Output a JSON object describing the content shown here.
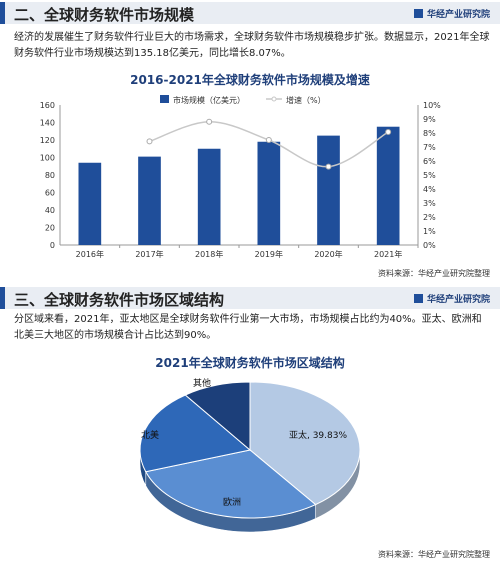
{
  "section2": {
    "title": "二、全球财务软件市场规模",
    "brand": "华经产业研究院",
    "paragraph": "经济的发展催生了财务软件行业巨大的市场需求，全球财务软件市场规模稳步扩张。数据显示，2021年全球财务软件行业市场规模达到135.18亿美元，同比增长8.07%。",
    "source": "资料来源：华经产业研究院整理"
  },
  "section3": {
    "title": "三、全球财务软件市场区域结构",
    "brand": "华经产业研究院",
    "paragraph": "分区域来看，2021年，亚太地区是全球财务软件行业第一大市场，市场规模占比约为40%。亚太、欧洲和北美三大地区的市场规模合计占比达到90%。",
    "source": "资料来源：华经产业研究院整理"
  },
  "colors": {
    "accent": "#1f4e9a",
    "bar": "#1f4e9a",
    "line": "#c8c8c8",
    "header_bg": "#e9edf3"
  },
  "chart_data": [
    {
      "type": "bar",
      "title": "2016-2021年全球财务软件市场规模及增速",
      "categories": [
        "2016年",
        "2017年",
        "2018年",
        "2019年",
        "2020年",
        "2021年"
      ],
      "series": [
        {
          "name": "市场规模（亿美元）",
          "type": "bar",
          "axis": "left",
          "values": [
            94,
            101,
            110,
            118,
            125,
            135.18
          ]
        },
        {
          "name": "增速（%）",
          "type": "line",
          "axis": "right",
          "values": [
            null,
            7.4,
            8.8,
            7.5,
            5.6,
            8.07
          ]
        }
      ],
      "ylim": [
        0,
        160
      ],
      "yticks": [
        "0",
        "20",
        "40",
        "60",
        "80",
        "100",
        "120",
        "140",
        "160"
      ],
      "y2lim": [
        0,
        10
      ],
      "y2ticks": [
        "0%",
        "1%",
        "2%",
        "3%",
        "4%",
        "5%",
        "6%",
        "7%",
        "8%",
        "9%",
        "10%"
      ],
      "legend": "top-center",
      "grid": false
    },
    {
      "type": "pie",
      "title": "2021年全球财务软件市场区域结构",
      "slices": [
        {
          "label": "亚太",
          "value": 39.83,
          "display": "亚太, 39.83%",
          "color": "#b4c9e4"
        },
        {
          "label": "欧洲",
          "value": 30,
          "display": "欧洲",
          "color": "#5a8ed2"
        },
        {
          "label": "北美",
          "value": 20.17,
          "display": "北美",
          "color": "#2e68b8"
        },
        {
          "label": "其他",
          "value": 10,
          "display": "其他",
          "color": "#1c3f7a"
        }
      ]
    }
  ]
}
